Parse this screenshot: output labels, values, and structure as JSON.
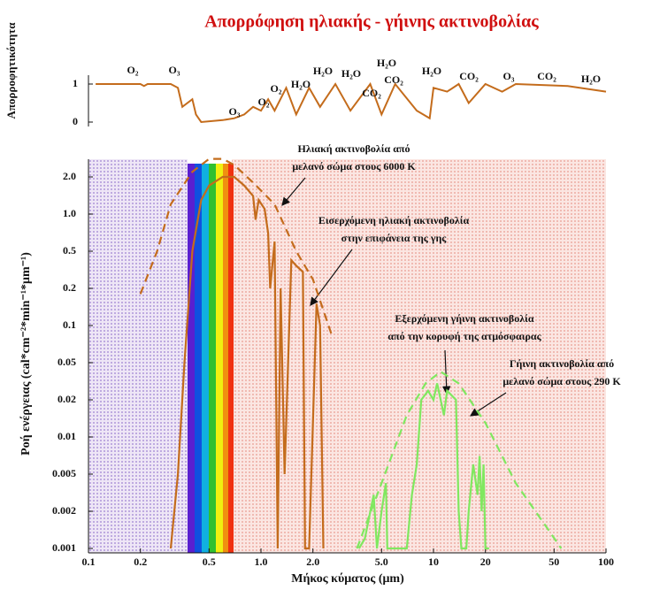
{
  "title": "Απορρόφηση ηλιακής - γήινης ακτινοβολίας",
  "chart_data": [
    {
      "type": "line",
      "ylabel": "Απορροφητικότητα",
      "log_x": true,
      "xlim": [
        0.1,
        100
      ],
      "ylim": [
        0,
        1
      ],
      "yticks": [
        0,
        1
      ],
      "color": "#c46c1c",
      "x": [
        0.11,
        0.2,
        0.21,
        0.22,
        0.3,
        0.33,
        0.35,
        0.4,
        0.42,
        0.45,
        0.6,
        0.7,
        0.8,
        0.9,
        1.0,
        1.1,
        1.2,
        1.4,
        1.6,
        1.9,
        2.2,
        2.7,
        3.3,
        4.3,
        5,
        6,
        8,
        9.5,
        10,
        12,
        14,
        16,
        20,
        25,
        30,
        60,
        100
      ],
      "values": [
        1,
        1,
        0.95,
        1,
        1,
        0.9,
        0.4,
        0.6,
        0.2,
        0,
        0.05,
        0.1,
        0.2,
        0.4,
        0.3,
        0.6,
        0.3,
        0.9,
        0.2,
        0.9,
        0.4,
        1,
        0.3,
        1,
        0.2,
        1,
        0.3,
        0.1,
        0.9,
        0.8,
        1,
        0.5,
        1,
        0.8,
        1,
        0.95,
        0.8
      ],
      "annotations": [
        "O₂",
        "O₃",
        "O₃",
        "O₂",
        "O₂",
        "H₂O",
        "H₂O",
        "H₂O",
        "H₂O",
        "CO₂",
        "CO₂",
        "H₂O",
        "CO₂",
        "O₃",
        "CO₂",
        "H₂O"
      ]
    },
    {
      "type": "line",
      "xlabel": "Μήκος κύματος (μm)",
      "ylabel": "Ροή ενέργειας (cal*cm⁻²*min⁻¹*μm⁻¹)",
      "log_x": true,
      "log_y": true,
      "xlim": [
        0.1,
        100
      ],
      "ylim": [
        0.001,
        2
      ],
      "xticks": [
        0.1,
        0.2,
        0.5,
        {
          "value": 1,
          "label": "1.0"
        },
        {
          "value": 2,
          "label": "2.0"
        },
        {
          "value": 5,
          "label": "5.0"
        },
        10,
        20,
        50,
        100
      ],
      "yticks": [
        {
          "value": 2,
          "label": "2.0"
        },
        {
          "value": 1,
          "label": "1.0"
        },
        0.5,
        0.2,
        0.1,
        0.05,
        0.02,
        0.01,
        0.005,
        0.002,
        0.001
      ],
      "series": [
        {
          "color": "#c46c1c",
          "dashed": true,
          "x": [
            0.2,
            0.25,
            0.3,
            0.4,
            0.5,
            0.6,
            0.7,
            0.9,
            1.2,
            1.6,
            2.0,
            2.6
          ],
          "values": [
            0.18,
            0.5,
            1.2,
            2.2,
            2.8,
            2.8,
            2.5,
            1.8,
            1.2,
            0.5,
            0.25,
            0.08
          ]
        },
        {
          "color": "#c46c1c",
          "dashed": false,
          "x": [
            0.3,
            0.33,
            0.36,
            0.4,
            0.45,
            0.5,
            0.6,
            0.7,
            0.8,
            0.9,
            0.93,
            0.97,
            1.05,
            1.1,
            1.13,
            1.2,
            1.25,
            1.3,
            1.37,
            1.5,
            1.6,
            1.75,
            1.8,
            1.9,
            2.1,
            2.2,
            2.3
          ],
          "values": [
            0.001,
            0.005,
            0.05,
            0.5,
            1.3,
            1.7,
            2.0,
            2.0,
            1.7,
            1.4,
            0.9,
            1.3,
            1.1,
            0.7,
            0.2,
            0.6,
            0.001,
            0.2,
            0.005,
            0.4,
            0.35,
            0.3,
            0.001,
            0.001,
            0.15,
            0.1,
            0.001
          ]
        },
        {
          "color": "#80e860",
          "dashed": true,
          "x": [
            3.6,
            5,
            7,
            9,
            11,
            14,
            20,
            30,
            45,
            55
          ],
          "values": [
            0.001,
            0.004,
            0.015,
            0.03,
            0.04,
            0.03,
            0.013,
            0.004,
            0.0015,
            0.001
          ]
        },
        {
          "color": "#80e860",
          "dashed": false,
          "x": [
            3.7,
            4,
            4.5,
            4.7,
            5,
            5.3,
            5.4,
            7,
            7.5,
            8,
            8.5,
            9.3,
            10,
            10.5,
            11,
            11.5,
            12,
            13.5,
            14,
            14.5,
            15.5,
            16,
            17,
            18,
            18.5,
            19,
            19.5,
            20,
            21
          ],
          "values": [
            0.001,
            0.0012,
            0.003,
            0.001,
            0.002,
            0.004,
            0.001,
            0.001,
            0.003,
            0.006,
            0.02,
            0.025,
            0.02,
            0.03,
            0.02,
            0.015,
            0.025,
            0.02,
            0.002,
            0.001,
            0.001,
            0.002,
            0.006,
            0.003,
            0.007,
            0.002,
            0.006,
            0.001,
            0.001
          ]
        }
      ],
      "annotations": [
        {
          "lines": [
            "Ηλιακή ακτινοβολία από",
            "μελανό σώμα στους 6000 Κ"
          ]
        },
        {
          "lines": [
            "Εισερχόμενη ηλιακή ακτινοβολία",
            "στην επιφάνεια της γης"
          ]
        },
        {
          "lines": [
            "Εξερχόμενη γήινη ακτινοβολία",
            "από την κορυφή της ατμόσφαιρας"
          ]
        },
        {
          "lines": [
            "Γήινη ακτινοβολία από",
            "μελανό σώμα στους 290 Κ"
          ]
        }
      ]
    }
  ]
}
